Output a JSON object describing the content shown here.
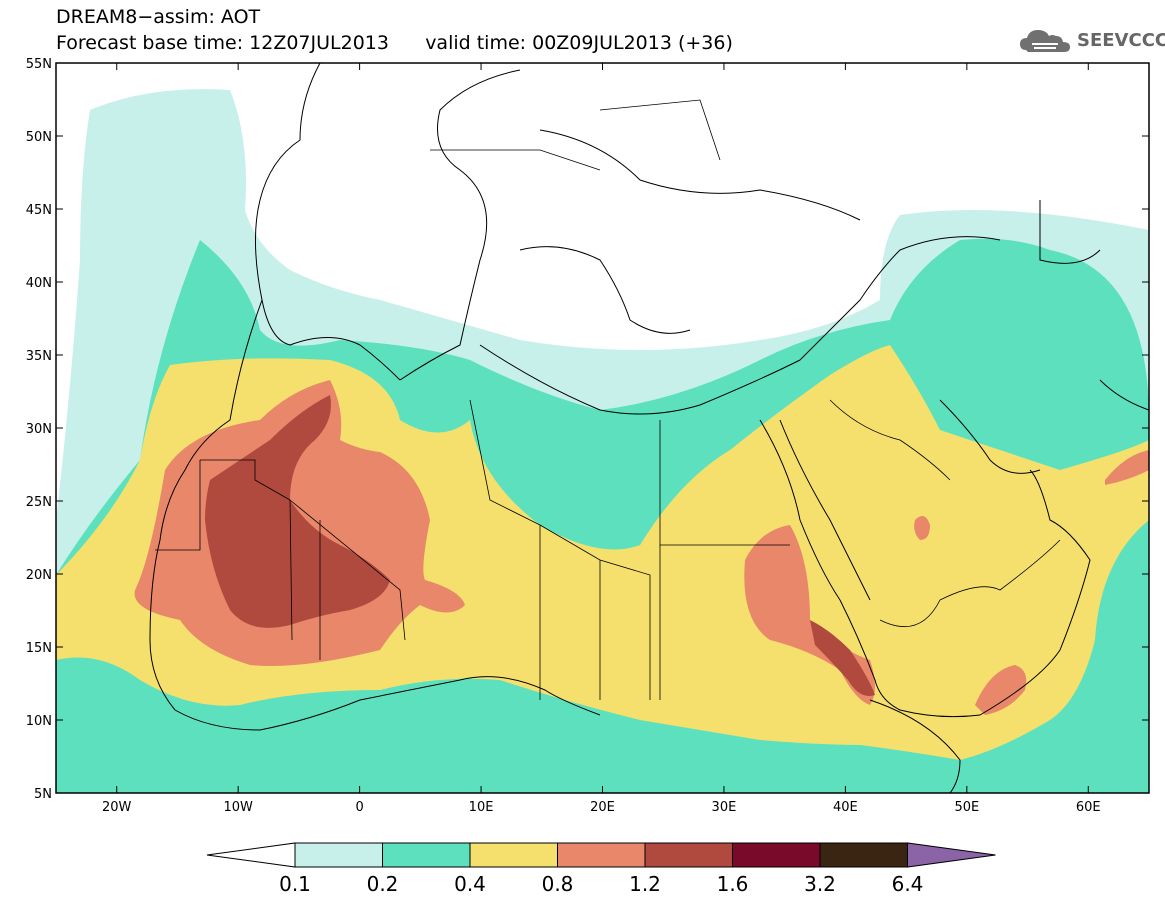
{
  "header": {
    "title_line1": "DREAM8−assim: AOT",
    "title_line2": "Forecast base time: 12Z07JUL2013      valid time: 00Z09JUL2013 (+36)",
    "logo_text": "SEEVCCC"
  },
  "map": {
    "projection": "lat-lon",
    "lon_range": [
      -25,
      65
    ],
    "lat_range": [
      5,
      55
    ],
    "lon_ticks": [
      {
        "value": -20,
        "label": "20W"
      },
      {
        "value": -10,
        "label": "10W"
      },
      {
        "value": 0,
        "label": "0"
      },
      {
        "value": 10,
        "label": "10E"
      },
      {
        "value": 20,
        "label": "20E"
      },
      {
        "value": 30,
        "label": "30E"
      },
      {
        "value": 40,
        "label": "40E"
      },
      {
        "value": 50,
        "label": "50E"
      },
      {
        "value": 60,
        "label": "60E"
      }
    ],
    "lat_ticks": [
      {
        "value": 5,
        "label": "5N"
      },
      {
        "value": 10,
        "label": "10N"
      },
      {
        "value": 15,
        "label": "15N"
      },
      {
        "value": 20,
        "label": "20N"
      },
      {
        "value": 25,
        "label": "25N"
      },
      {
        "value": 30,
        "label": "30N"
      },
      {
        "value": 35,
        "label": "35N"
      },
      {
        "value": 40,
        "label": "40N"
      },
      {
        "value": 45,
        "label": "45N"
      },
      {
        "value": 50,
        "label": "50N"
      },
      {
        "value": 55,
        "label": "55N"
      }
    ]
  },
  "colorbar": {
    "labels": [
      "0.1",
      "0.2",
      "0.4",
      "0.8",
      "1.2",
      "1.6",
      "3.2",
      "6.4"
    ],
    "colors": [
      "#c7f0ea",
      "#5ce0be",
      "#f5e06e",
      "#e8876a",
      "#b04a3e",
      "#7a0a2a",
      "#3a2412",
      "#8b64a8"
    ]
  },
  "colors": {
    "c01": "#c7f0ea",
    "c02": "#5ce0be",
    "c04": "#f5e06e",
    "c08": "#e8876a",
    "c12": "#b04a3e"
  }
}
